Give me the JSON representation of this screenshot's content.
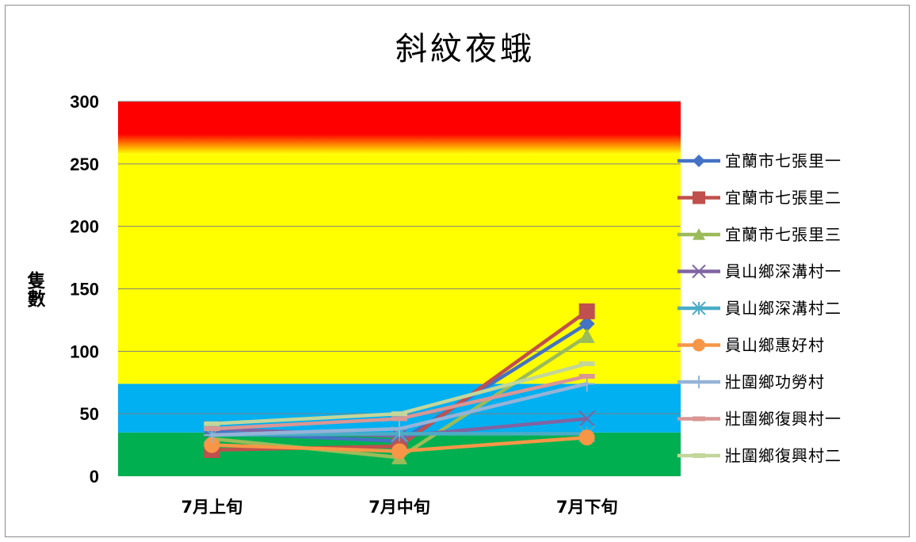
{
  "chart_data": {
    "type": "line",
    "title": "斜紋夜蛾",
    "ylabel": "隻數",
    "xlabel": "",
    "categories": [
      "7月上旬",
      "7月中旬",
      "7月下旬"
    ],
    "yticks": [
      "0",
      "50",
      "100",
      "150",
      "200",
      "250",
      "300"
    ],
    "ylim": [
      0,
      300
    ],
    "grid": true,
    "legend_position": "right",
    "bands": [
      {
        "from": 0,
        "to": 35,
        "color": "#00B050"
      },
      {
        "from": 35,
        "to": 74,
        "color": "#00B0F0"
      },
      {
        "from": 74,
        "to": 258,
        "color": "#FFFF00"
      },
      {
        "from": 258,
        "to": 300,
        "color": "#FF0000"
      }
    ],
    "series": [
      {
        "name": "宜蘭市七張里一",
        "color": "#4472C4",
        "marker": "diamond",
        "values": [
          35,
          28,
          122
        ]
      },
      {
        "name": "宜蘭市七張里二",
        "color": "#C0504D",
        "marker": "square",
        "values": [
          21,
          24,
          132
        ]
      },
      {
        "name": "宜蘭市七張里三",
        "color": "#9BBB59",
        "marker": "triangle",
        "values": [
          30,
          15,
          112
        ]
      },
      {
        "name": "員山鄉深溝村一",
        "color": "#8064A2",
        "marker": "x",
        "values": [
          38,
          32,
          46
        ]
      },
      {
        "name": "員山鄉深溝村二",
        "color": "#4BACC6",
        "marker": "star",
        "values": [
          33,
          34,
          34
        ]
      },
      {
        "name": "員山鄉惠好村",
        "color": "#F79646",
        "marker": "circle",
        "values": [
          25,
          20,
          31
        ]
      },
      {
        "name": "壯圍鄉功勞村",
        "color": "#95B3D7",
        "marker": "plus",
        "values": [
          33,
          38,
          74
        ]
      },
      {
        "name": "壯圍鄉復興村一",
        "color": "#D99694",
        "marker": "dash",
        "values": [
          38,
          46,
          80
        ]
      },
      {
        "name": "壯圍鄉復興村二",
        "color": "#C3D69B",
        "marker": "dash",
        "values": [
          42,
          50,
          90
        ]
      }
    ]
  }
}
